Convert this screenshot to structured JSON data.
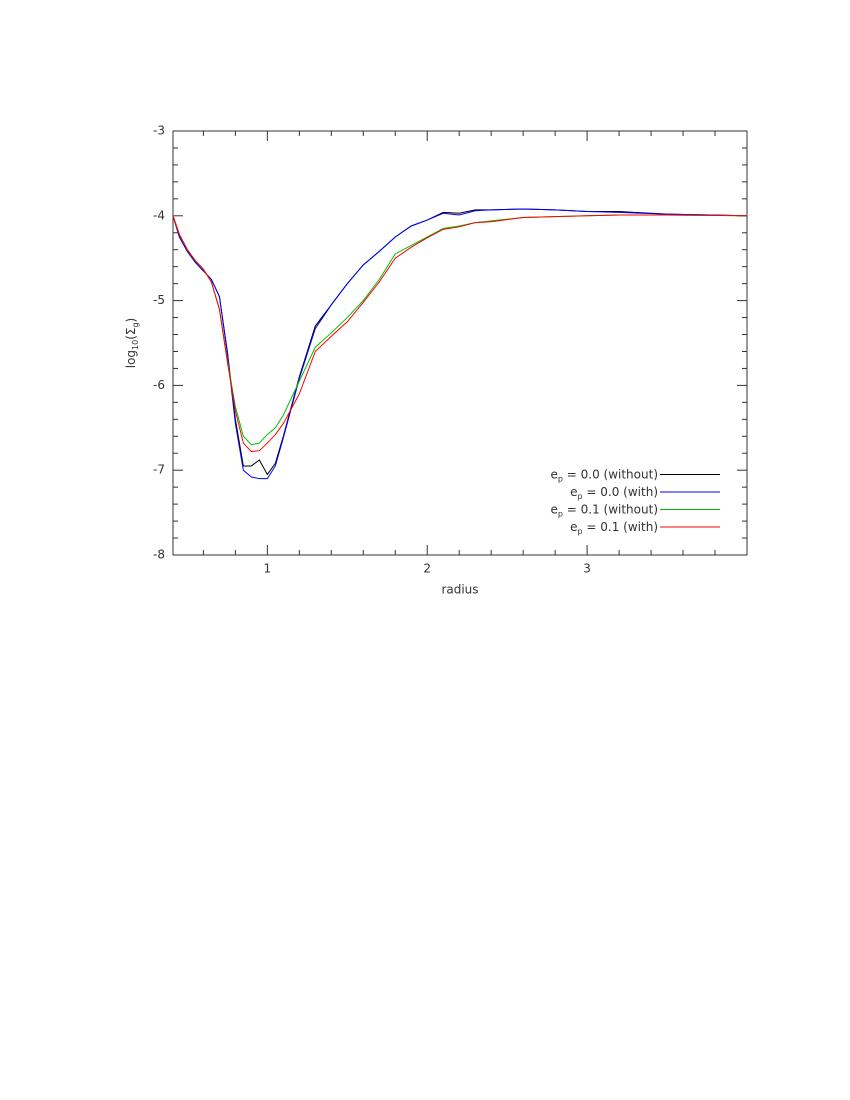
{
  "chart_data": {
    "type": "line",
    "xlabel": "radius",
    "ylabel": [
      "log",
      "10",
      "(Σ",
      "g",
      ")"
    ],
    "x": [
      0.41,
      0.45,
      0.5,
      0.55,
      0.6,
      0.65,
      0.7,
      0.75,
      0.8,
      0.85,
      0.9,
      0.95,
      1.0,
      1.05,
      1.1,
      1.2,
      1.3,
      1.4,
      1.5,
      1.6,
      1.7,
      1.8,
      1.9,
      2.0,
      2.1,
      2.2,
      2.3,
      2.4,
      2.6,
      2.8,
      3.0,
      3.2,
      3.5,
      4.0
    ],
    "series": [
      {
        "name": [
          "e",
          "p",
          " = 0.0 (without)"
        ],
        "color": "#000000",
        "values": [
          -4.0,
          -4.25,
          -4.42,
          -4.55,
          -4.65,
          -4.75,
          -4.95,
          -5.6,
          -6.4,
          -6.95,
          -6.95,
          -6.88,
          -7.05,
          -6.92,
          -6.6,
          -5.9,
          -5.3,
          -5.05,
          -4.8,
          -4.58,
          -4.42,
          -4.25,
          -4.12,
          -4.05,
          -3.96,
          -3.97,
          -3.93,
          -3.93,
          -3.92,
          -3.93,
          -3.95,
          -3.95,
          -3.98,
          -4.0
        ]
      },
      {
        "name": [
          "e",
          "p",
          " = 0.0 (with)"
        ],
        "color": "#0000ff",
        "values": [
          -4.0,
          -4.25,
          -4.42,
          -4.55,
          -4.65,
          -4.75,
          -4.95,
          -5.62,
          -6.45,
          -7.0,
          -7.08,
          -7.1,
          -7.1,
          -6.95,
          -6.62,
          -5.92,
          -5.33,
          -5.05,
          -4.8,
          -4.58,
          -4.42,
          -4.25,
          -4.12,
          -4.05,
          -3.97,
          -3.99,
          -3.94,
          -3.93,
          -3.92,
          -3.93,
          -3.95,
          -3.96,
          -3.98,
          -4.0
        ]
      },
      {
        "name": [
          "e",
          "p",
          " = 0.1 (without)"
        ],
        "color": "#00c000",
        "values": [
          -4.0,
          -4.22,
          -4.4,
          -4.53,
          -4.63,
          -4.78,
          -5.1,
          -5.7,
          -6.25,
          -6.6,
          -6.7,
          -6.68,
          -6.58,
          -6.5,
          -6.35,
          -5.95,
          -5.55,
          -5.38,
          -5.2,
          -5.0,
          -4.75,
          -4.45,
          -4.35,
          -4.25,
          -4.15,
          -4.12,
          -4.08,
          -4.06,
          -4.02,
          -4.01,
          -4.0,
          -3.99,
          -3.99,
          -4.0
        ]
      },
      {
        "name": [
          "e",
          "p",
          " = 0.1 (with)"
        ],
        "color": "#ff0000",
        "values": [
          -4.0,
          -4.22,
          -4.4,
          -4.53,
          -4.63,
          -4.78,
          -5.1,
          -5.72,
          -6.3,
          -6.68,
          -6.78,
          -6.77,
          -6.68,
          -6.58,
          -6.45,
          -6.1,
          -5.6,
          -5.42,
          -5.25,
          -5.02,
          -4.78,
          -4.5,
          -4.37,
          -4.26,
          -4.16,
          -4.13,
          -4.08,
          -4.07,
          -4.02,
          -4.01,
          -4.0,
          -3.99,
          -3.99,
          -4.0
        ]
      }
    ],
    "xlim": [
      0.41,
      4.0
    ],
    "ylim": [
      -8,
      -3
    ],
    "xticks": [
      1,
      2,
      3
    ],
    "yticks": [
      -8,
      -7,
      -6,
      -5,
      -4,
      -3
    ],
    "xminor_ticks": [
      0.6,
      0.8,
      1.2,
      1.4,
      1.6,
      1.8,
      2.2,
      2.4,
      2.6,
      2.8,
      3.2,
      3.4,
      3.6,
      3.8
    ],
    "yminor_ticks": [
      -7.8,
      -7.6,
      -7.4,
      -7.2,
      -6.8,
      -6.6,
      -6.4,
      -6.2,
      -5.8,
      -5.6,
      -5.4,
      -5.2,
      -4.8,
      -4.6,
      -4.4,
      -4.2,
      -3.8,
      -3.6,
      -3.4,
      -3.2
    ],
    "legend": "lower right",
    "grid": false
  }
}
